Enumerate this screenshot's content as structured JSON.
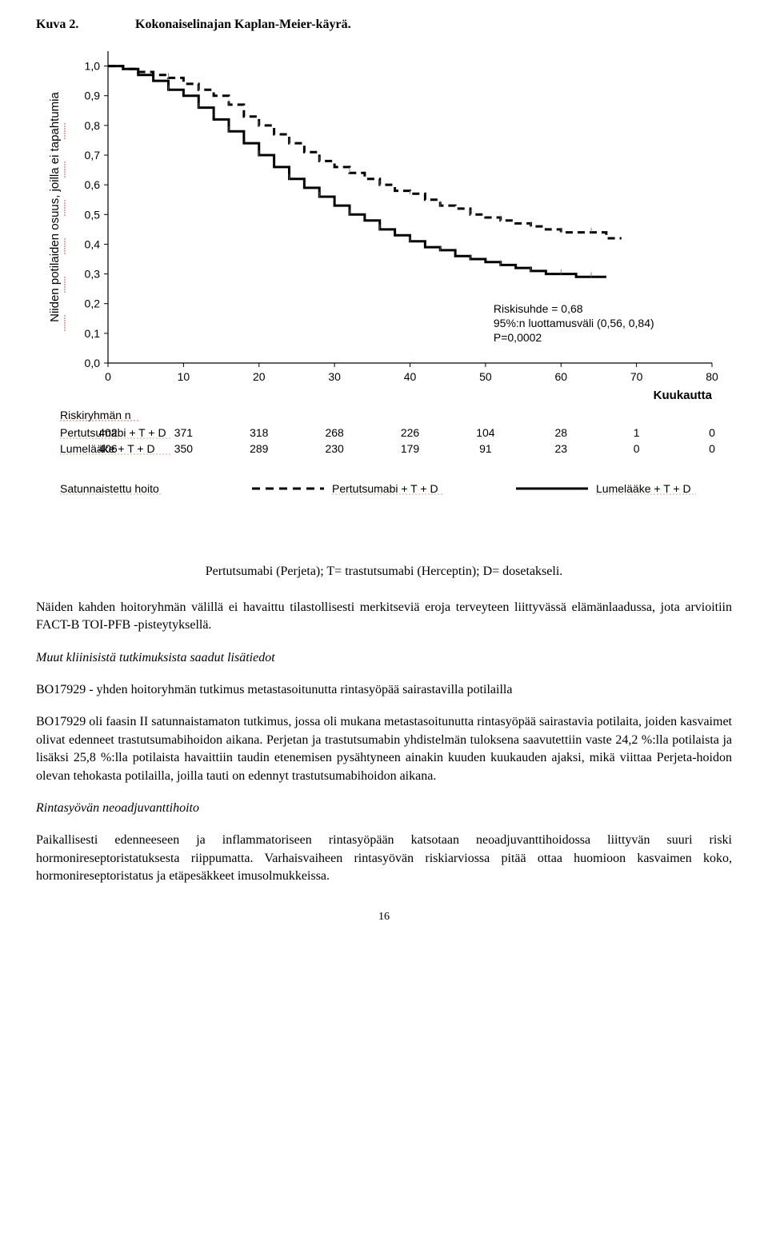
{
  "heading": {
    "number": "Kuva 2.",
    "title": "Kokonaiselinajan Kaplan-Meier-käyrä."
  },
  "chart": {
    "type": "line",
    "y_axis_label": "Niiden potilaiden osuus, joilla ei tapahtumia",
    "x_axis_label": "Kuukautta",
    "x_ticks": [
      0,
      10,
      20,
      30,
      40,
      50,
      60,
      70,
      80
    ],
    "y_ticks": [
      "0,0",
      "0,1",
      "0,2",
      "0,3",
      "0,4",
      "0,5",
      "0,6",
      "0,7",
      "0,8",
      "0,9",
      "1,0"
    ],
    "y_values": [
      0.0,
      0.1,
      0.2,
      0.3,
      0.4,
      0.5,
      0.6,
      0.7,
      0.8,
      0.9,
      1.0
    ],
    "x_max": 80,
    "y_max": 1.05,
    "series": [
      {
        "name": "Pertutsumabi + T + D",
        "style": "dashed",
        "color": "#000000",
        "stroke_width": 3,
        "points": [
          [
            0,
            1.0
          ],
          [
            2,
            0.99
          ],
          [
            4,
            0.98
          ],
          [
            6,
            0.97
          ],
          [
            8,
            0.96
          ],
          [
            10,
            0.94
          ],
          [
            12,
            0.92
          ],
          [
            14,
            0.9
          ],
          [
            16,
            0.87
          ],
          [
            18,
            0.83
          ],
          [
            20,
            0.8
          ],
          [
            22,
            0.77
          ],
          [
            24,
            0.74
          ],
          [
            26,
            0.71
          ],
          [
            28,
            0.68
          ],
          [
            30,
            0.66
          ],
          [
            32,
            0.64
          ],
          [
            34,
            0.62
          ],
          [
            36,
            0.6
          ],
          [
            38,
            0.58
          ],
          [
            40,
            0.57
          ],
          [
            42,
            0.55
          ],
          [
            44,
            0.53
          ],
          [
            46,
            0.52
          ],
          [
            48,
            0.5
          ],
          [
            50,
            0.49
          ],
          [
            52,
            0.48
          ],
          [
            54,
            0.47
          ],
          [
            56,
            0.46
          ],
          [
            58,
            0.45
          ],
          [
            60,
            0.44
          ],
          [
            62,
            0.44
          ],
          [
            64,
            0.44
          ],
          [
            66,
            0.42
          ],
          [
            68,
            0.42
          ]
        ]
      },
      {
        "name": "Lumelääke + T + D",
        "style": "solid",
        "color": "#000000",
        "stroke_width": 3,
        "points": [
          [
            0,
            1.0
          ],
          [
            2,
            0.99
          ],
          [
            4,
            0.97
          ],
          [
            6,
            0.95
          ],
          [
            8,
            0.92
          ],
          [
            10,
            0.9
          ],
          [
            12,
            0.86
          ],
          [
            14,
            0.82
          ],
          [
            16,
            0.78
          ],
          [
            18,
            0.74
          ],
          [
            20,
            0.7
          ],
          [
            22,
            0.66
          ],
          [
            24,
            0.62
          ],
          [
            26,
            0.59
          ],
          [
            28,
            0.56
          ],
          [
            30,
            0.53
          ],
          [
            32,
            0.5
          ],
          [
            34,
            0.48
          ],
          [
            36,
            0.45
          ],
          [
            38,
            0.43
          ],
          [
            40,
            0.41
          ],
          [
            42,
            0.39
          ],
          [
            44,
            0.38
          ],
          [
            46,
            0.36
          ],
          [
            48,
            0.35
          ],
          [
            50,
            0.34
          ],
          [
            52,
            0.33
          ],
          [
            54,
            0.32
          ],
          [
            56,
            0.31
          ],
          [
            58,
            0.3
          ],
          [
            60,
            0.3
          ],
          [
            62,
            0.29
          ],
          [
            64,
            0.29
          ],
          [
            66,
            0.29
          ]
        ]
      }
    ],
    "stats_box": {
      "line1": "Riskisuhde = 0,68",
      "line2": "95%:n luottamusväli (0,56, 0,84)",
      "line3": "P=0,0002"
    },
    "risk_table": {
      "heading": "Riskiryhmän  n",
      "rows": [
        {
          "label": "Pertutsumabi + T + D",
          "values": [
            402,
            371,
            318,
            268,
            226,
            104,
            28,
            1,
            0
          ]
        },
        {
          "label": "Lumelääke + T + D",
          "values": [
            406,
            350,
            289,
            230,
            179,
            91,
            23,
            0,
            0
          ]
        }
      ]
    },
    "legend": {
      "heading": "Satunnaistettu  hoito",
      "items": [
        {
          "label": "Pertutsumabi + T + D",
          "style": "dashed"
        },
        {
          "label": "Lumelääke + T + D",
          "style": "solid"
        }
      ]
    },
    "background_color": "#ffffff",
    "axis_color": "#000000"
  },
  "caption": "Pertutsumabi (Perjeta); T= trastutsumabi (Herceptin); D= dosetakseli.",
  "body": {
    "p1": "Näiden kahden hoitoryhmän välillä ei havaittu tilastollisesti merkitseviä eroja terveyteen liittyvässä elämänlaadussa, jota arvioitiin FACT-B TOI-PFB -pisteytyksellä.",
    "p2_heading": "Muut kliinisistä tutkimuksista saadut lisätiedot",
    "p3": "BO17929 - yhden hoitoryhmän tutkimus metastasoitunutta rintasyöpää sairastavilla potilailla",
    "p4": "BO17929 oli faasin II satunnaistamaton tutkimus, jossa oli mukana metastasoitunutta rintasyöpää sairastavia potilaita, joiden kasvaimet olivat edenneet trastutsumabihoidon aikana. Perjetan ja trastutsumabin yhdistelmän tuloksena saavutettiin vaste 24,2 %:lla potilaista ja lisäksi 25,8 %:lla potilaista havaittiin taudin etenemisen pysähtyneen ainakin kuuden kuukauden ajaksi, mikä viittaa Perjeta-hoidon olevan tehokasta potilailla, joilla tauti on edennyt trastutsumabihoidon aikana.",
    "p5_heading": "Rintasyövän neoadjuvanttihoito",
    "p6": "Paikallisesti edenneeseen ja inflammatoriseen rintasyöpään katsotaan neoadjuvanttihoidossa liittyvän suuri riski hormonireseptoristatuksesta riippumatta. Varhaisvaiheen rintasyövän riskiarviossa pitää ottaa huomioon kasvaimen koko, hormonireseptoristatus ja etäpesäkkeet imusolmukkeissa."
  },
  "page_number": "16"
}
